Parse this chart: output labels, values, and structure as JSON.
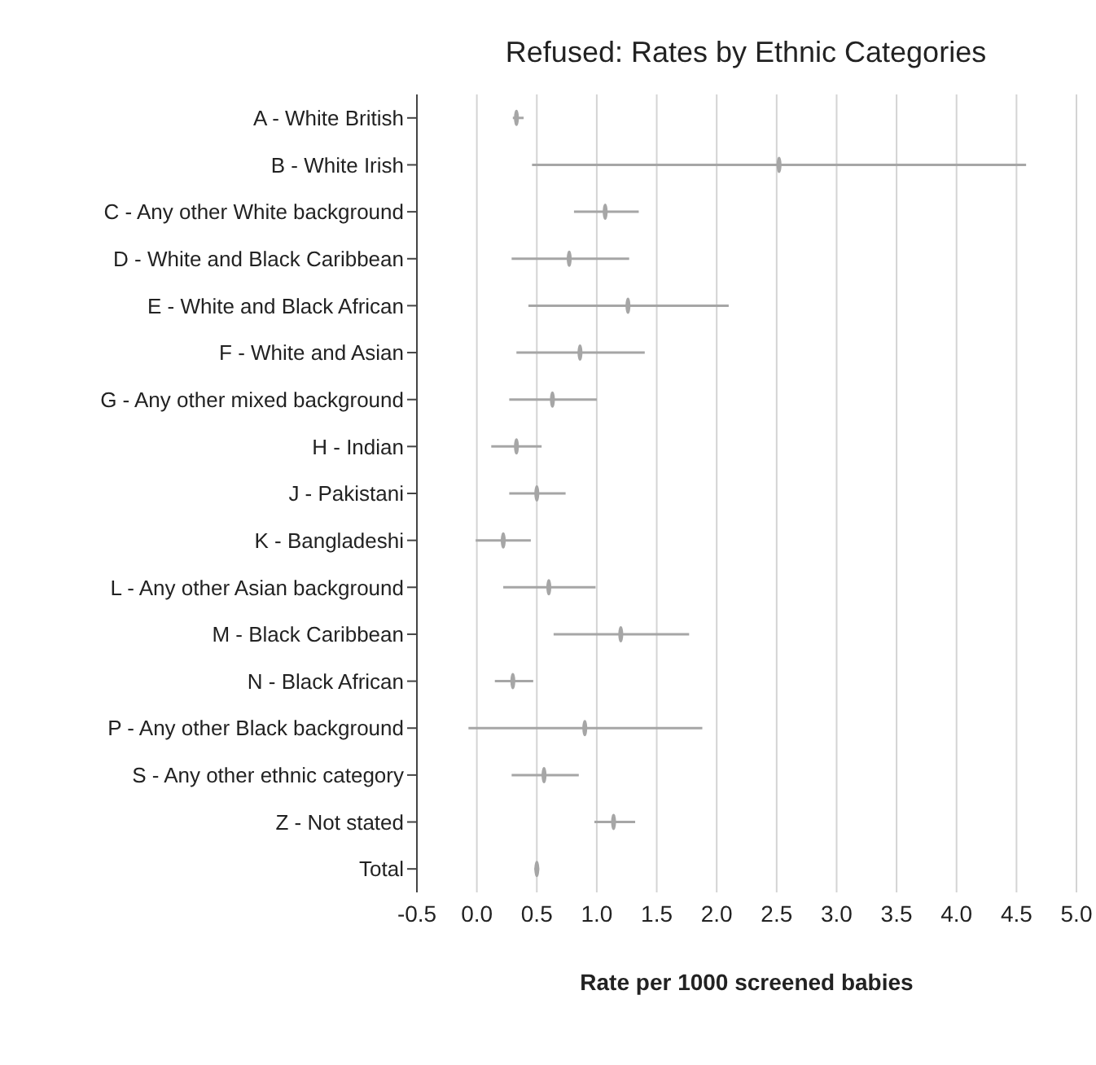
{
  "chart_data": {
    "type": "scatter",
    "title": "Refused: Rates by Ethnic Categories",
    "xlabel": "Rate per 1000 screened babies",
    "categories": [
      "A - White British",
      "B - White Irish",
      "C - Any other White background",
      "D - White and Black Caribbean",
      "E - White and Black African",
      "F - White and Asian",
      "G - Any other mixed background",
      "H - Indian",
      "J - Pakistani",
      "K - Bangladeshi",
      "L - Any other Asian background",
      "M - Black Caribbean",
      "N - Black African",
      "P - Any other Black background",
      "S - Any other ethnic category",
      "Z - Not stated",
      "Total"
    ],
    "values": [
      0.33,
      2.52,
      1.07,
      0.77,
      1.26,
      0.86,
      0.63,
      0.33,
      0.5,
      0.22,
      0.6,
      1.2,
      0.3,
      0.9,
      0.56,
      1.14,
      0.5
    ],
    "errors": [
      [
        0.3,
        0.39
      ],
      [
        0.46,
        4.58
      ],
      [
        0.81,
        1.35
      ],
      [
        0.29,
        1.27
      ],
      [
        0.43,
        2.1
      ],
      [
        0.33,
        1.4
      ],
      [
        0.27,
        1.0
      ],
      [
        0.12,
        0.54
      ],
      [
        0.27,
        0.74
      ],
      [
        -0.01,
        0.45
      ],
      [
        0.22,
        0.99
      ],
      [
        0.64,
        1.77
      ],
      [
        0.15,
        0.47
      ],
      [
        -0.07,
        1.88
      ],
      [
        0.29,
        0.85
      ],
      [
        0.98,
        1.32
      ],
      [
        0.48,
        0.52
      ]
    ],
    "color": "#a6a6a6",
    "orientation": "horizontal",
    "xlim": [
      -0.5,
      5.0
    ],
    "xticks": [
      {
        "value": -0.5,
        "label": "-0.5"
      },
      {
        "value": 0,
        "label": "0.0"
      },
      {
        "value": 0.5,
        "label": "0.5"
      },
      {
        "value": 1,
        "label": "1.0"
      },
      {
        "value": 1.5,
        "label": "1.5"
      },
      {
        "value": 2,
        "label": "2.0"
      },
      {
        "value": 2.5,
        "label": "2.5"
      },
      {
        "value": 3,
        "label": "3.0"
      },
      {
        "value": 3.5,
        "label": "3.5"
      },
      {
        "value": 4,
        "label": "4.0"
      },
      {
        "value": 4.5,
        "label": "4.5"
      },
      {
        "value": 5,
        "label": "5.0"
      }
    ],
    "grid": "x"
  }
}
